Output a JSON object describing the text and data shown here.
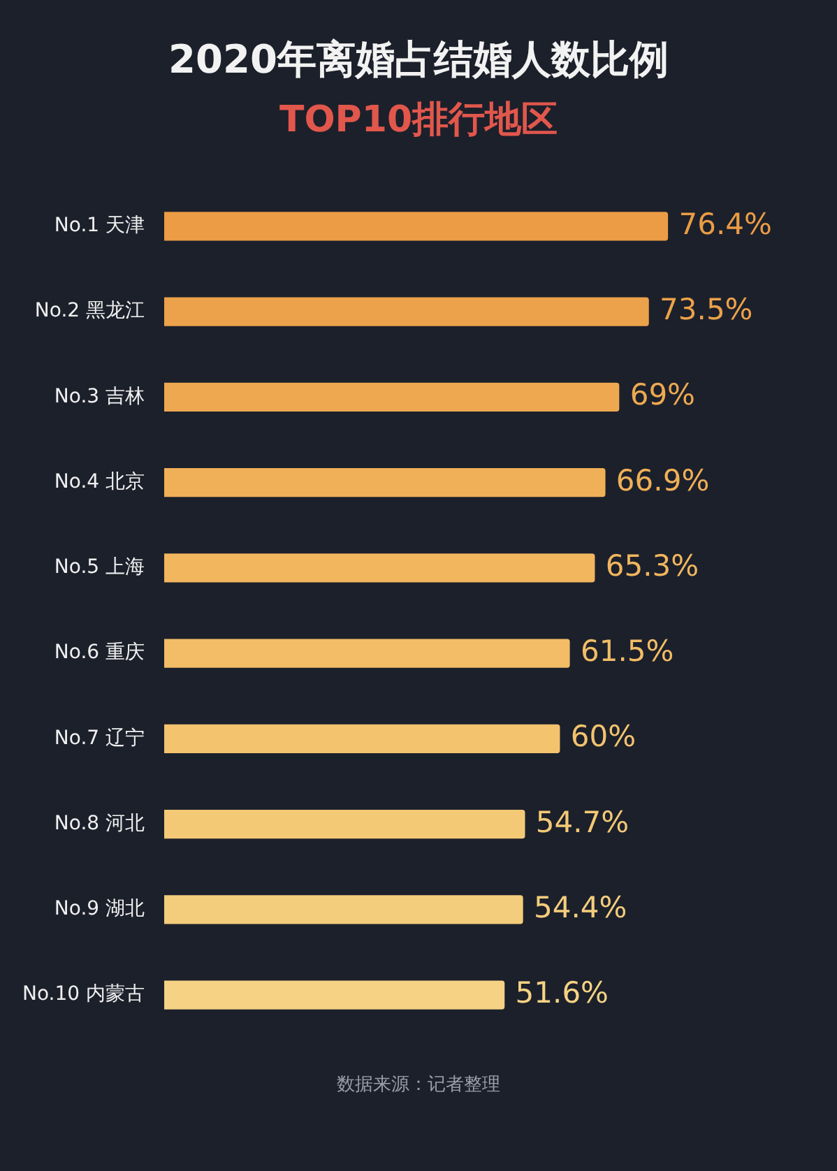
{
  "chart_data": {
    "type": "bar",
    "orientation": "horizontal",
    "title": "2020年离婚占结婚人数比例",
    "subtitle": "TOP10排行地区",
    "categories": [
      "No.1 天津",
      "No.2 黑龙江",
      "No.3 吉林",
      "No.4 北京",
      "No.5 上海",
      "No.6 重庆",
      "No.7 辽宁",
      "No.8 河北",
      "No.9 湖北",
      "No.10 内蒙古"
    ],
    "values": [
      76.4,
      73.5,
      69,
      66.9,
      65.3,
      61.5,
      60,
      54.7,
      54.4,
      51.6
    ],
    "value_labels": [
      "76.4%",
      "73.5%",
      "69%",
      "66.9%",
      "65.3%",
      "61.5%",
      "60%",
      "54.7%",
      "54.4%",
      "51.6%"
    ],
    "colors": [
      "#eb9c44",
      "#eca24a",
      "#eea950",
      "#f0b057",
      "#f1b65e",
      "#f2bd66",
      "#f3c36e",
      "#f4c976",
      "#f4cd7c",
      "#f5d284"
    ],
    "legend": false,
    "annotations": [
      "数据来源：记者整理"
    ]
  }
}
